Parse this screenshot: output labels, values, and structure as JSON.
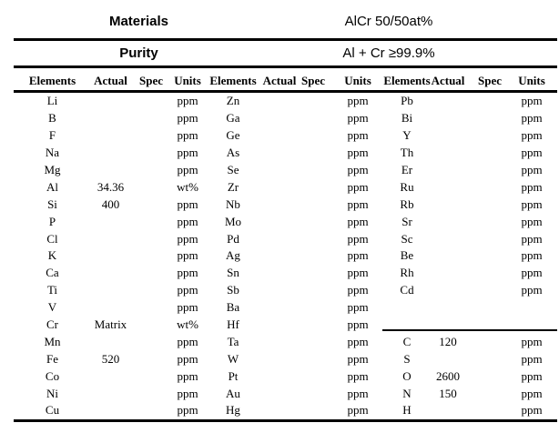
{
  "header": {
    "materials_label": "Materials",
    "materials_value": "AlCr 50/50at%",
    "purity_label": "Purity",
    "purity_value": "Al + Cr ≥99.9%"
  },
  "table": {
    "column_headers": [
      "Elements",
      "Actual",
      "Spec",
      "Units"
    ],
    "groups": [
      {
        "name": "group-1",
        "rows": [
          [
            "Li",
            "",
            "",
            "ppm"
          ],
          [
            "B",
            "",
            "",
            "ppm"
          ],
          [
            "F",
            "",
            "",
            "ppm"
          ],
          [
            "Na",
            "",
            "",
            "ppm"
          ],
          [
            "Mg",
            "",
            "",
            "ppm"
          ],
          [
            "Al",
            "34.36",
            "",
            "wt%"
          ],
          [
            "Si",
            "400",
            "",
            "ppm"
          ],
          [
            "P",
            "",
            "",
            "ppm"
          ],
          [
            "Cl",
            "",
            "",
            "ppm"
          ],
          [
            "K",
            "",
            "",
            "ppm"
          ],
          [
            "Ca",
            "",
            "",
            "ppm"
          ],
          [
            "Ti",
            "",
            "",
            "ppm"
          ],
          [
            "V",
            "",
            "",
            "ppm"
          ],
          [
            "Cr",
            "Matrix",
            "",
            "wt%"
          ],
          [
            "Mn",
            "",
            "",
            "ppm"
          ],
          [
            "Fe",
            "520",
            "",
            "ppm"
          ],
          [
            "Co",
            "",
            "",
            "ppm"
          ],
          [
            "Ni",
            "",
            "",
            "ppm"
          ],
          [
            "Cu",
            "",
            "",
            "ppm"
          ]
        ]
      },
      {
        "name": "group-2",
        "rows": [
          [
            "Zn",
            "",
            "",
            "ppm"
          ],
          [
            "Ga",
            "",
            "",
            "ppm"
          ],
          [
            "Ge",
            "",
            "",
            "ppm"
          ],
          [
            "As",
            "",
            "",
            "ppm"
          ],
          [
            "Se",
            "",
            "",
            "ppm"
          ],
          [
            "Zr",
            "",
            "",
            "ppm"
          ],
          [
            "Nb",
            "",
            "",
            "ppm"
          ],
          [
            "Mo",
            "",
            "",
            "ppm"
          ],
          [
            "Pd",
            "",
            "",
            "ppm"
          ],
          [
            "Ag",
            "",
            "",
            "ppm"
          ],
          [
            "Sn",
            "",
            "",
            "ppm"
          ],
          [
            "Sb",
            "",
            "",
            "ppm"
          ],
          [
            "Ba",
            "",
            "",
            "ppm"
          ],
          [
            "Hf",
            "",
            "",
            "ppm"
          ],
          [
            "Ta",
            "",
            "",
            "ppm"
          ],
          [
            "W",
            "",
            "",
            "ppm"
          ],
          [
            "Pt",
            "",
            "",
            "ppm"
          ],
          [
            "Au",
            "",
            "",
            "ppm"
          ],
          [
            "Hg",
            "",
            "",
            "ppm"
          ]
        ]
      },
      {
        "name": "group-3",
        "separator_before_row_index": 14,
        "rows": [
          [
            "Pb",
            "",
            "",
            "ppm"
          ],
          [
            "Bi",
            "",
            "",
            "ppm"
          ],
          [
            "Y",
            "",
            "",
            "ppm"
          ],
          [
            "Th",
            "",
            "",
            "ppm"
          ],
          [
            "Er",
            "",
            "",
            "ppm"
          ],
          [
            "Ru",
            "",
            "",
            "ppm"
          ],
          [
            "Rb",
            "",
            "",
            "ppm"
          ],
          [
            "Sr",
            "",
            "",
            "ppm"
          ],
          [
            "Sc",
            "",
            "",
            "ppm"
          ],
          [
            "Be",
            "",
            "",
            "ppm"
          ],
          [
            "Rh",
            "",
            "",
            "ppm"
          ],
          [
            "Cd",
            "",
            "",
            "ppm"
          ],
          [
            "",
            "",
            "",
            ""
          ],
          [
            "",
            "",
            "",
            ""
          ],
          [
            "C",
            "120",
            "",
            "ppm"
          ],
          [
            "S",
            "",
            "",
            "ppm"
          ],
          [
            "O",
            "2600",
            "",
            "ppm"
          ],
          [
            "N",
            "150",
            "",
            "ppm"
          ],
          [
            "H",
            "",
            "",
            "ppm"
          ]
        ]
      }
    ]
  },
  "colors": {
    "text": "#000000",
    "background": "#ffffff",
    "rule": "#000000"
  }
}
